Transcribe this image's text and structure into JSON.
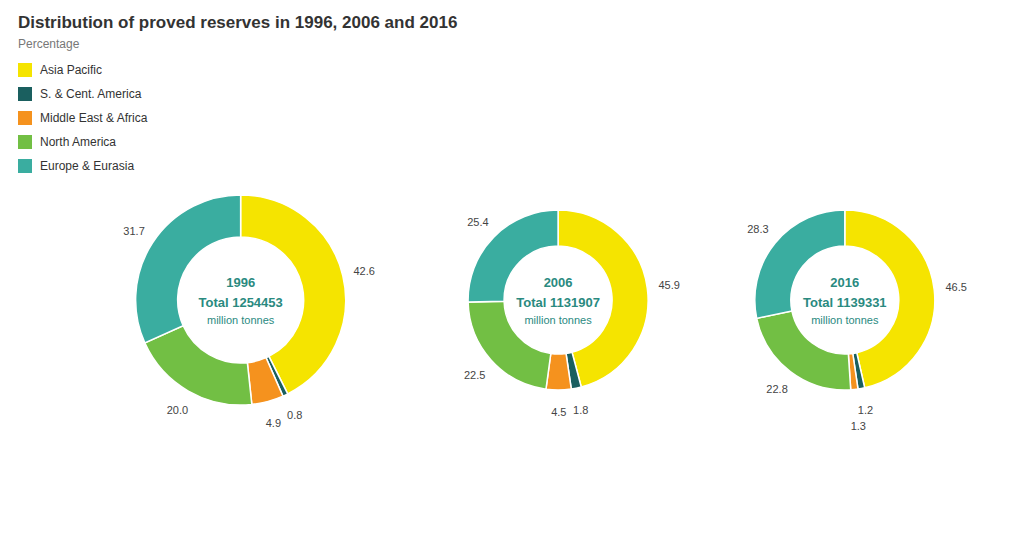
{
  "chart_data": [
    {
      "type": "pie",
      "title": "Distribution of proved reserves in 1996, 2006 and 2016",
      "subtitle": "Percentage",
      "legend": "top-left",
      "annotations": [
        "1996",
        "Total 1254453",
        "million tonnes"
      ],
      "categories": [
        "Asia Pacific",
        "S. & Cent. America",
        "Middle East & Africa",
        "North America",
        "Europe & Eurasia"
      ],
      "values": [
        42.6,
        0.8,
        4.9,
        20.0,
        31.7
      ],
      "value_labels": [
        "42.6",
        "0.8",
        "4.9",
        "20.0",
        "31.7"
      ],
      "colors": [
        "#f5e400",
        "#1a5f5f",
        "#f5921e",
        "#72bf44",
        "#3aada0"
      ],
      "data_labels": true
    },
    {
      "type": "pie",
      "annotations": [
        "2006",
        "Total 1131907",
        "million tonnes"
      ],
      "categories": [
        "Asia Pacific",
        "S. & Cent. America",
        "Middle East & Africa",
        "North America",
        "Europe & Eurasia"
      ],
      "values": [
        45.9,
        1.8,
        4.5,
        22.5,
        25.4
      ],
      "value_labels": [
        "45.9",
        "1.8",
        "4.5",
        "22.5",
        "25.4"
      ],
      "colors": [
        "#f5e400",
        "#1a5f5f",
        "#f5921e",
        "#72bf44",
        "#3aada0"
      ],
      "data_labels": true
    },
    {
      "type": "pie",
      "annotations": [
        "2016",
        "Total 1139331",
        "million tonnes"
      ],
      "categories": [
        "Asia Pacific",
        "S. & Cent. America",
        "Middle East & Africa",
        "North America",
        "Europe & Eurasia"
      ],
      "values": [
        46.5,
        1.2,
        1.3,
        22.8,
        28.3
      ],
      "value_labels": [
        "46.5",
        "1.2",
        "1.3",
        "22.8",
        "28.3"
      ],
      "colors": [
        "#f5e400",
        "#1a5f5f",
        "#f5921e",
        "#72bf44",
        "#3aada0"
      ],
      "data_labels": true
    }
  ]
}
